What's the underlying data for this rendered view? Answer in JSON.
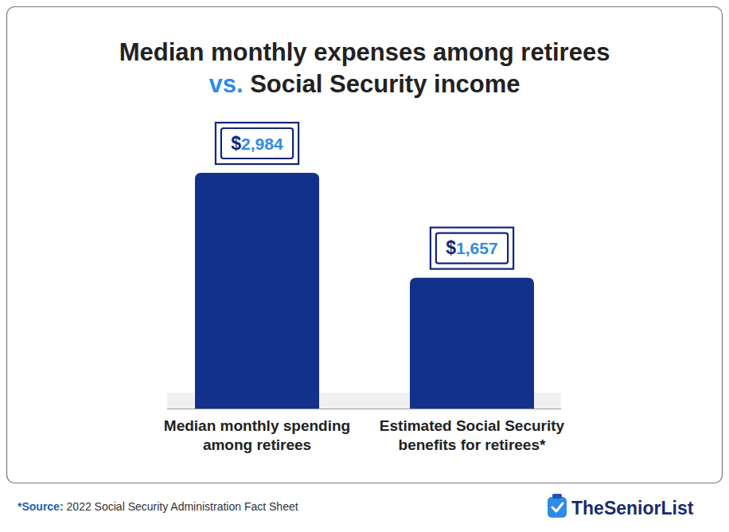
{
  "chart_data": {
    "type": "bar",
    "title": "Median monthly expenses among retirees",
    "subtitle": "vs. Social Security income",
    "categories": [
      "Median monthly spending among retirees",
      "Estimated Social Security benefits for retirees*"
    ],
    "values": [
      2984,
      1657
    ],
    "value_labels": [
      "$2,984",
      "$1,657"
    ],
    "color": "#13308a",
    "data_labels": true,
    "tick_labels": false,
    "grid": false,
    "note_label": "*Source:",
    "note": "2022 Social Security Administration Fact Sheet",
    "logo": "TheSeniorList"
  }
}
